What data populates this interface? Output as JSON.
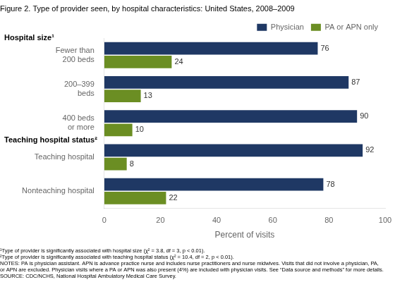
{
  "chart_data": {
    "type": "bar",
    "orientation": "horizontal",
    "title": "Figure 2. Type of provider seen, by hospital characteristics: United States, 2008–2009",
    "categories": [
      "Fewer than\n200 beds",
      "200–399\nbeds",
      "400 beds\nor more",
      "Teaching hospital",
      "Nonteaching hospital"
    ],
    "series": [
      {
        "name": "Physician",
        "color": "#1F3864",
        "values": [
          76,
          87,
          90,
          92,
          78
        ]
      },
      {
        "name": "PA or APN only",
        "color": "#6B8E23",
        "values": [
          24,
          13,
          10,
          8,
          22
        ]
      }
    ],
    "xlabel": "Percent of visits",
    "xlim": [
      0,
      100
    ],
    "xticks": [
      0,
      20,
      40,
      60,
      80,
      100
    ],
    "grid": false,
    "legend": "upper right",
    "data_labels": true,
    "annotations": [
      {
        "text": "Hospital size¹",
        "category": "Fewer than\n200 beds"
      },
      {
        "text": "Teaching hospital status²",
        "category": "Teaching hospital"
      }
    ],
    "footnotes": [
      "¹Type of provider is significantly associated with hospital size (χ² = 3.8, df = 3, p < 0.01).",
      "²Type of provider is significantly associated with teaching hospital status (χ² = 10.4, df = 2, p < 0.01).",
      "NOTES: PA is physician assistant. APN is advance practice nurse and includes nurse practitioners and nurse midwives. Visits that did not involve a physician, PA,",
      "or APN are excluded. Physician visits where a PA or APN was also present (4%) are included with physician visits. See “Data source and methods” for more details.",
      "SOURCE: CDC/NCHS, National Hospital Ambulatory Medical Care Survey."
    ]
  }
}
